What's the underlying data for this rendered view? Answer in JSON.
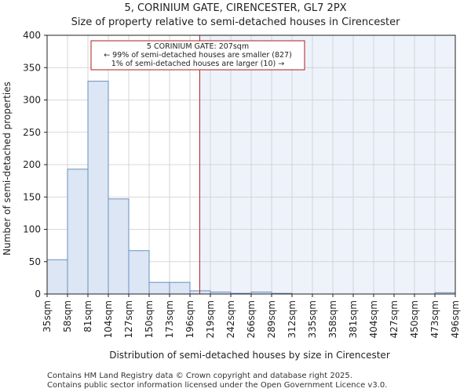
{
  "chart_data": {
    "type": "bar",
    "title": "5, CORINIUM GATE, CIRENCESTER, GL7 2PX",
    "subtitle": "Size of property relative to semi-detached houses in Cirencester",
    "xlabel": "Distribution of semi-detached houses by size in Cirencester",
    "ylabel": "Number of semi-detached properties",
    "ylim": [
      0,
      400
    ],
    "yticks": [
      0,
      50,
      100,
      150,
      200,
      250,
      300,
      350,
      400
    ],
    "bin_edges": [
      35,
      58,
      81,
      104,
      127,
      150,
      173,
      196,
      219,
      242,
      266,
      289,
      312,
      335,
      358,
      381,
      404,
      427,
      450,
      473,
      496
    ],
    "xtick_labels": [
      "35sqm",
      "58sqm",
      "81sqm",
      "104sqm",
      "127sqm",
      "150sqm",
      "173sqm",
      "196sqm",
      "219sqm",
      "242sqm",
      "266sqm",
      "289sqm",
      "312sqm",
      "335sqm",
      "358sqm",
      "381sqm",
      "404sqm",
      "427sqm",
      "450sqm",
      "473sqm",
      "496sqm"
    ],
    "values": [
      53,
      193,
      329,
      147,
      67,
      18,
      18,
      5,
      3,
      1,
      3,
      1,
      0,
      0,
      0,
      0,
      0,
      0,
      0,
      2
    ],
    "property_value": 207,
    "annotation": {
      "line1": "5 CORINIUM GATE: 207sqm",
      "line2": "← 99% of semi-detached houses are smaller (827)",
      "line3": "1% of semi-detached houses are larger (10) →"
    },
    "colors": {
      "bar_fill": "#dce6f4",
      "bar_stroke": "#6a8fc2",
      "marker_line": "#b01c1c",
      "shade": "#eef2fa",
      "grid": "#cccccc"
    },
    "grid": true
  },
  "footer": {
    "line1": "Contains HM Land Registry data © Crown copyright and database right 2025.",
    "line2": "Contains public sector information licensed under the Open Government Licence v3.0."
  }
}
